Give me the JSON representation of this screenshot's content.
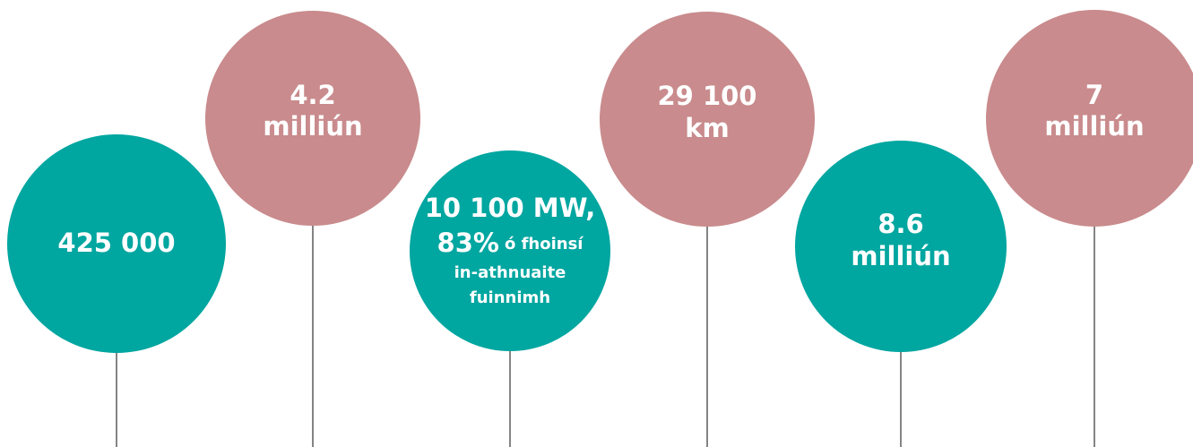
{
  "circles": [
    {
      "lines": [
        "425 000"
      ]
    },
    {
      "lines": [
        "4.2",
        "milliún"
      ]
    },
    {
      "headline": [
        "10 100 MW,",
        "83%"
      ],
      "detail": [
        "ó fhoinsí",
        "in-athnuaite",
        "fuinnimh"
      ]
    },
    {
      "lines": [
        "29 100",
        "km"
      ]
    },
    {
      "lines": [
        "8.6",
        "milliún"
      ]
    },
    {
      "lines": [
        "7",
        "milliún"
      ]
    }
  ]
}
